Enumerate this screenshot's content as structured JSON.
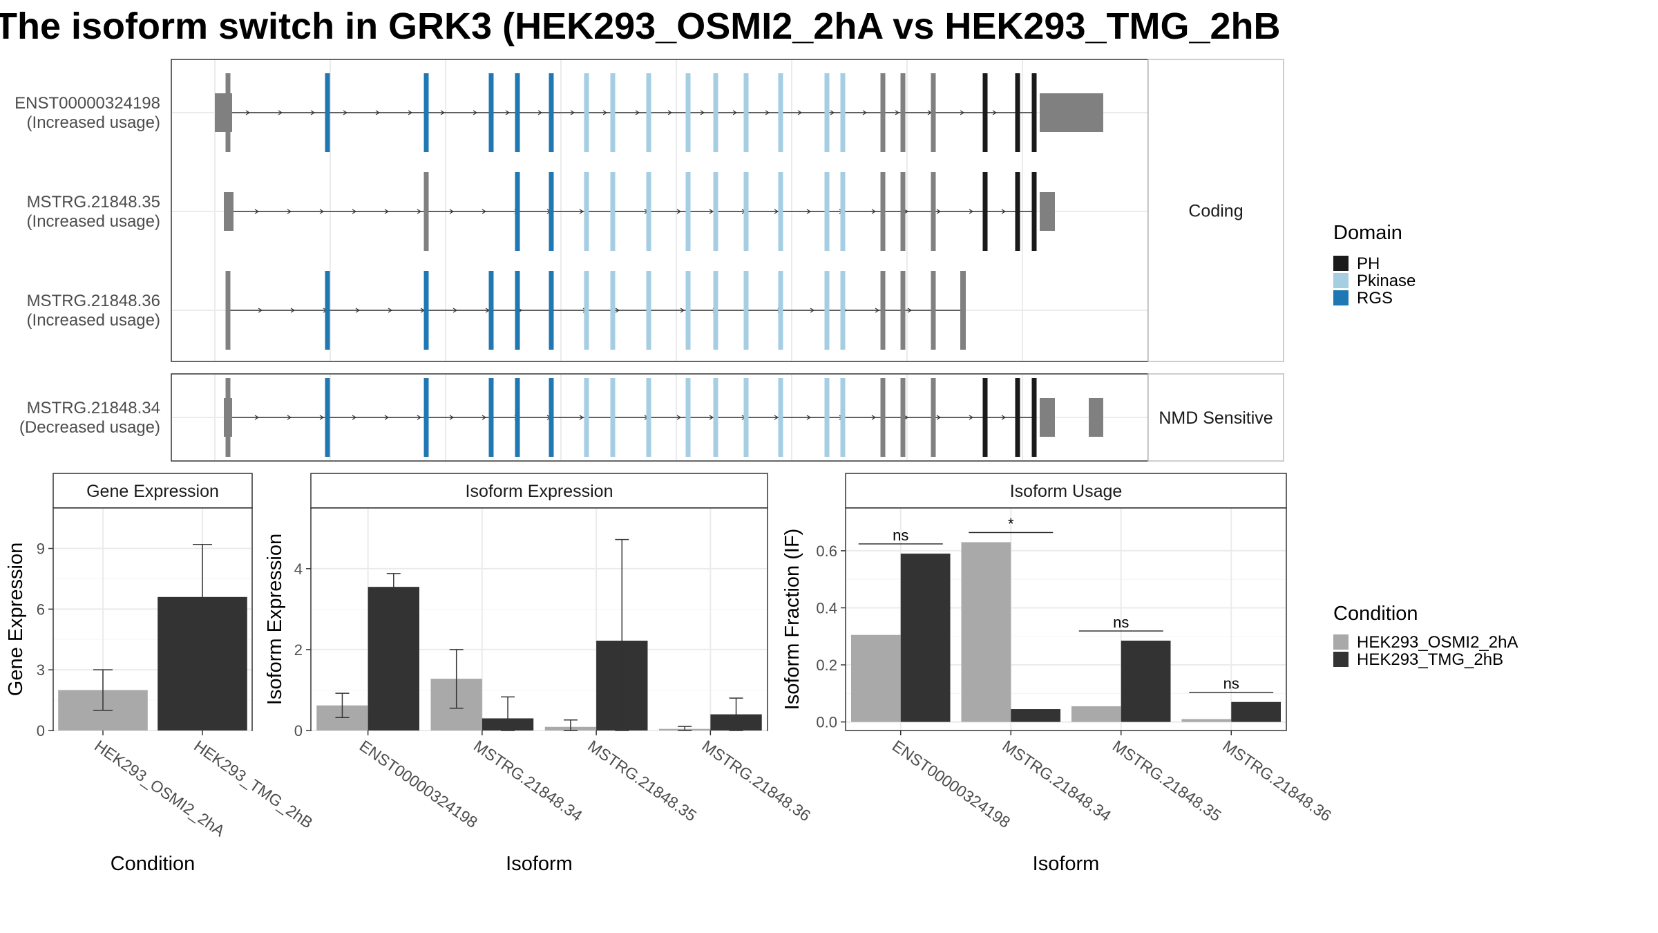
{
  "title": "The isoform switch in GRK3 (HEK293_OSMI2_2hA vs HEK293_TMG_2hB",
  "colors": {
    "PH": "#1a1a1a",
    "Pkinase": "#a6cee3",
    "RGS": "#1f78b4",
    "noncoding": "#808080",
    "cond_a": "#a9a9a9",
    "cond_b": "#333333",
    "grid": "#ebebeb",
    "panel_border": "#333333"
  },
  "structure": {
    "groups": [
      {
        "label": "Coding"
      },
      {
        "label": "NMD Sensitive"
      }
    ],
    "transcripts": [
      {
        "id": "ENST00000324198",
        "usage": "(Increased usage)",
        "group": 0
      },
      {
        "id": "MSTRG.21848.35",
        "usage": "(Increased usage)",
        "group": 0
      },
      {
        "id": "MSTRG.21848.36",
        "usage": "(Increased usage)",
        "group": 0
      },
      {
        "id": "MSTRG.21848.34",
        "usage": "(Decreased usage)",
        "group": 1
      }
    ]
  },
  "legend_domain": {
    "title": "Domain",
    "items": [
      {
        "label": "PH",
        "color": "#1a1a1a"
      },
      {
        "label": "Pkinase",
        "color": "#a6cee3"
      },
      {
        "label": "RGS",
        "color": "#1f78b4"
      }
    ]
  },
  "legend_condition": {
    "title": "Condition",
    "items": [
      {
        "label": "HEK293_OSMI2_2hA",
        "color": "#a9a9a9"
      },
      {
        "label": "HEK293_TMG_2hB",
        "color": "#333333"
      }
    ]
  },
  "chart_data": [
    {
      "type": "bar",
      "panel": "Gene Expression",
      "xlabel": "Condition",
      "ylabel": "Gene Expression",
      "ylim": [
        0,
        11
      ],
      "yticks": [
        0,
        3,
        6,
        9
      ],
      "categories": [
        "HEK293_OSMI2_2hA",
        "HEK293_TMG_2hB"
      ],
      "values": [
        2.0,
        6.6
      ],
      "err_low": [
        1.0,
        4.0
      ],
      "err_high": [
        3.0,
        9.2
      ]
    },
    {
      "type": "bar",
      "panel": "Isoform Expression",
      "xlabel": "Isoform",
      "ylabel": "Isoform Expression",
      "ylim": [
        0,
        5.5
      ],
      "yticks": [
        0,
        2,
        4
      ],
      "categories": [
        "ENST00000324198",
        "MSTRG.21848.34",
        "MSTRG.21848.35",
        "MSTRG.21848.36"
      ],
      "series": [
        {
          "name": "HEK293_OSMI2_2hA",
          "values": [
            0.62,
            1.28,
            0.09,
            0.04
          ],
          "err_low": [
            0.32,
            0.55,
            0.0,
            0.0
          ],
          "err_high": [
            0.92,
            2.0,
            0.26,
            0.1
          ]
        },
        {
          "name": "HEK293_TMG_2hB",
          "values": [
            3.55,
            0.3,
            2.22,
            0.4
          ],
          "err_low": [
            3.22,
            0.0,
            0.0,
            0.0
          ],
          "err_high": [
            3.88,
            0.83,
            4.72,
            0.8
          ]
        }
      ]
    },
    {
      "type": "bar",
      "panel": "Isoform Usage",
      "xlabel": "Isoform",
      "ylabel": "Isoform Fraction (IF)",
      "ylim": [
        -0.03,
        0.75
      ],
      "yticks": [
        0.0,
        0.2,
        0.4,
        0.6
      ],
      "categories": [
        "ENST00000324198",
        "MSTRG.21848.34",
        "MSTRG.21848.35",
        "MSTRG.21848.36"
      ],
      "series": [
        {
          "name": "HEK293_OSMI2_2hA",
          "values": [
            0.305,
            0.63,
            0.055,
            0.01
          ]
        },
        {
          "name": "HEK293_TMG_2hB",
          "values": [
            0.59,
            0.045,
            0.285,
            0.07
          ]
        }
      ],
      "significance": [
        "ns",
        "*",
        "ns",
        "ns"
      ]
    }
  ]
}
